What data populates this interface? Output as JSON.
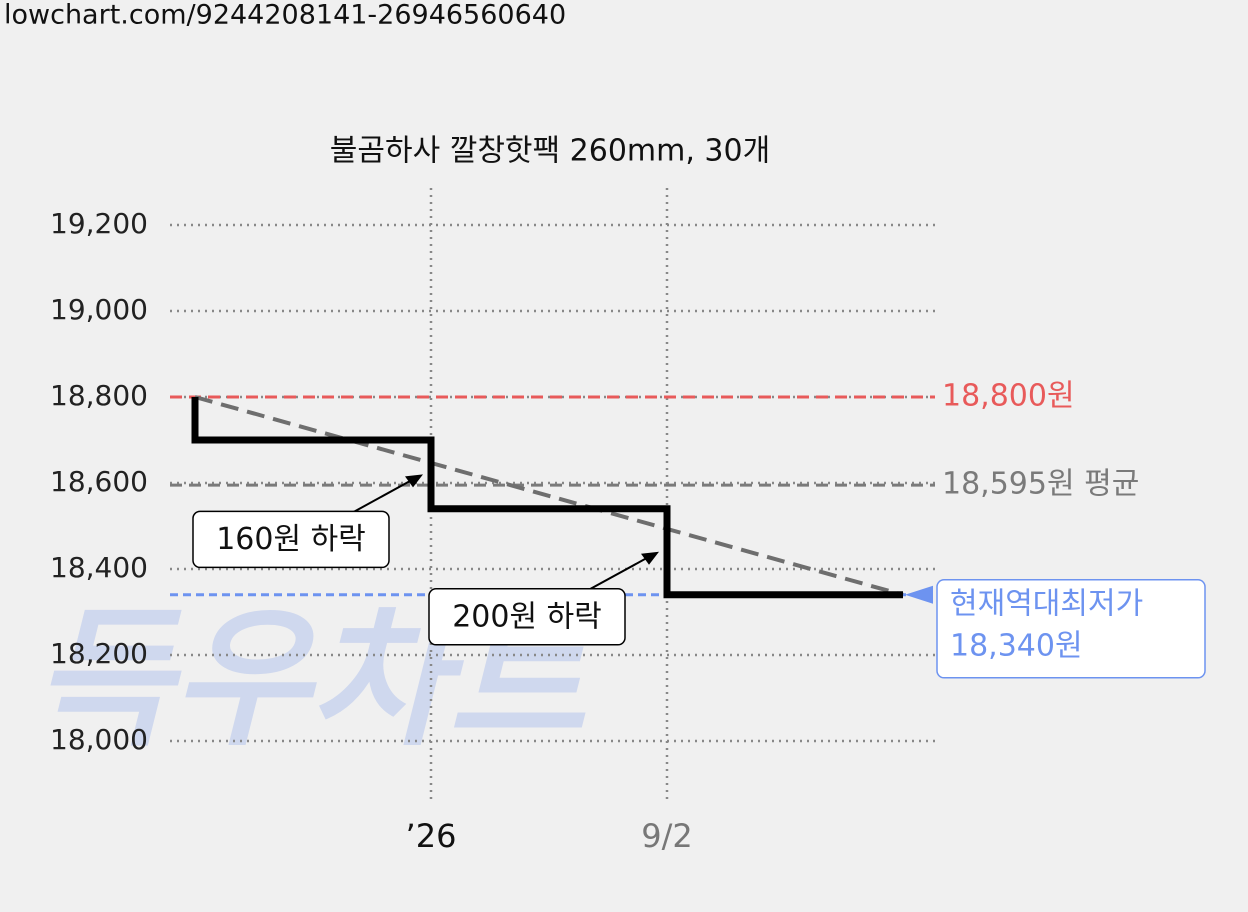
{
  "chart_data": {
    "type": "line",
    "url": "lowchart.com/9244208141-26946560640",
    "title": "불곰하사 깔창핫팩 260mm, 30개",
    "watermark": "득우차트",
    "x": [
      0,
      0,
      1,
      1,
      2,
      2,
      3
    ],
    "series": [
      {
        "color": "#000000",
        "values": [
          18800,
          18700,
          18700,
          18540,
          18540,
          18340,
          18340
        ]
      }
    ],
    "trend": {
      "color": "#6e6e6e",
      "x": [
        0,
        3
      ],
      "values": [
        18800,
        18340
      ]
    },
    "xlim": [
      0,
      3
    ],
    "xticks": [
      {
        "value": 1,
        "label": "’26"
      },
      {
        "value": 2,
        "label": "9/2"
      }
    ],
    "xtick_colors": [
      "#111111",
      "#777777"
    ],
    "ylim": [
      18000,
      19200
    ],
    "yticks": [
      {
        "value": 18000,
        "label": "18,000"
      },
      {
        "value": 18200,
        "label": "18,200"
      },
      {
        "value": 18400,
        "label": "18,400"
      },
      {
        "value": 18600,
        "label": "18,600"
      },
      {
        "value": 18800,
        "label": "18,800"
      },
      {
        "value": 19000,
        "label": "19,000"
      },
      {
        "value": 19200,
        "label": "19,200"
      }
    ],
    "grid": true,
    "ref_lines": [
      {
        "value": 18800,
        "label": "18,800원",
        "color": "#e85a5a"
      },
      {
        "value": 18595,
        "label": "18,595원 평균",
        "color": "#7a7a7a"
      },
      {
        "value": 18340,
        "label_lines": [
          "현재역대최저가",
          "18,340원"
        ],
        "color": "#6d93f0"
      }
    ],
    "annotations": [
      {
        "label": "160원 하락"
      },
      {
        "label": "200원 하락"
      }
    ]
  }
}
